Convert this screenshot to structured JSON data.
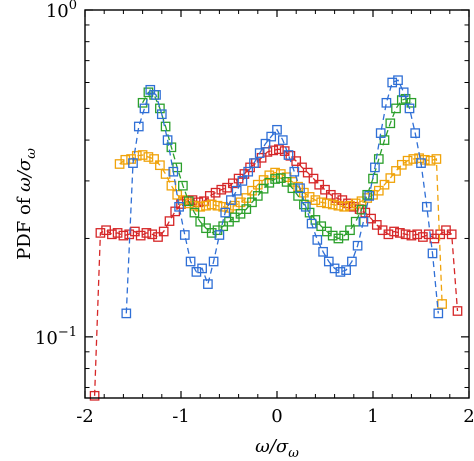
{
  "chart_data": {
    "type": "scatter",
    "xlabel": {
      "main": "ω/σ",
      "sub": "ω"
    },
    "ylabel": {
      "prefix": "PDF of ",
      "main": "ω/σ",
      "sub": "ω"
    },
    "xlim": [
      -2.0,
      2.0
    ],
    "ylim": [
      0.065,
      1.0
    ],
    "yscale": "log",
    "x_ticks": [
      {
        "value": -2,
        "label": "-2"
      },
      {
        "value": -1,
        "label": "-1"
      },
      {
        "value": 0,
        "label": "0"
      },
      {
        "value": 1,
        "label": "1"
      },
      {
        "value": 2,
        "label": "2"
      }
    ],
    "y_ticks": [
      {
        "value": 1.0,
        "base": "10",
        "exp": "0"
      },
      {
        "value": 0.1,
        "base": "10",
        "exp": "−1"
      }
    ],
    "grid": false,
    "series": [
      {
        "color": "#d62728",
        "x": [
          -1.9,
          -1.84,
          -1.78,
          -1.72,
          -1.66,
          -1.6,
          -1.54,
          -1.48,
          -1.42,
          -1.36,
          -1.3,
          -1.24,
          -1.18,
          -1.12,
          -1.06,
          -1.0,
          -0.94,
          -0.88,
          -0.82,
          -0.76,
          -0.7,
          -0.64,
          -0.58,
          -0.52,
          -0.46,
          -0.4,
          -0.34,
          -0.28,
          -0.22,
          -0.16,
          -0.1,
          -0.04,
          0.02,
          0.08,
          0.14,
          0.2,
          0.26,
          0.32,
          0.38,
          0.44,
          0.5,
          0.56,
          0.62,
          0.68,
          0.74,
          0.8,
          0.86,
          0.92,
          0.98,
          1.04,
          1.1,
          1.16,
          1.22,
          1.28,
          1.34,
          1.4,
          1.46,
          1.52,
          1.58,
          1.64,
          1.7,
          1.76,
          1.82,
          1.88
        ],
        "y": [
          0.066,
          0.208,
          0.212,
          0.206,
          0.208,
          0.204,
          0.206,
          0.21,
          0.204,
          0.208,
          0.206,
          0.202,
          0.21,
          0.226,
          0.242,
          0.255,
          0.26,
          0.262,
          0.258,
          0.26,
          0.27,
          0.276,
          0.282,
          0.286,
          0.295,
          0.305,
          0.315,
          0.33,
          0.34,
          0.353,
          0.368,
          0.372,
          0.375,
          0.37,
          0.358,
          0.345,
          0.33,
          0.318,
          0.305,
          0.292,
          0.282,
          0.272,
          0.266,
          0.262,
          0.256,
          0.25,
          0.246,
          0.24,
          0.23,
          0.22,
          0.212,
          0.206,
          0.21,
          0.208,
          0.206,
          0.204,
          0.206,
          0.202,
          0.206,
          0.2,
          0.206,
          0.212,
          0.206,
          0.12
        ]
      },
      {
        "color": "#f0a30a",
        "x": [
          -1.64,
          -1.58,
          -1.52,
          -1.46,
          -1.4,
          -1.34,
          -1.28,
          -1.22,
          -1.16,
          -1.1,
          -1.04,
          -0.98,
          -0.92,
          -0.86,
          -0.8,
          -0.74,
          -0.68,
          -0.62,
          -0.56,
          -0.5,
          -0.44,
          -0.38,
          -0.32,
          -0.26,
          -0.2,
          -0.14,
          -0.08,
          -0.02,
          0.04,
          0.1,
          0.16,
          0.22,
          0.28,
          0.34,
          0.4,
          0.46,
          0.52,
          0.58,
          0.64,
          0.7,
          0.76,
          0.82,
          0.88,
          0.94,
          1.0,
          1.06,
          1.12,
          1.18,
          1.24,
          1.3,
          1.36,
          1.42,
          1.48,
          1.54,
          1.6,
          1.66,
          1.72
        ],
        "y": [
          0.338,
          0.348,
          0.35,
          0.358,
          0.36,
          0.355,
          0.35,
          0.335,
          0.315,
          0.29,
          0.272,
          0.262,
          0.256,
          0.252,
          0.25,
          0.252,
          0.254,
          0.252,
          0.25,
          0.248,
          0.252,
          0.258,
          0.266,
          0.28,
          0.292,
          0.302,
          0.312,
          0.318,
          0.315,
          0.308,
          0.298,
          0.288,
          0.276,
          0.268,
          0.262,
          0.258,
          0.256,
          0.254,
          0.252,
          0.25,
          0.252,
          0.256,
          0.26,
          0.266,
          0.272,
          0.28,
          0.292,
          0.306,
          0.322,
          0.336,
          0.346,
          0.35,
          0.352,
          0.348,
          0.346,
          0.35,
          0.126
        ]
      },
      {
        "color": "#2ca02c",
        "x": [
          -1.4,
          -1.34,
          -1.28,
          -1.22,
          -1.16,
          -1.1,
          -1.04,
          -0.98,
          -0.92,
          -0.86,
          -0.8,
          -0.74,
          -0.68,
          -0.62,
          -0.56,
          -0.5,
          -0.44,
          -0.38,
          -0.32,
          -0.26,
          -0.2,
          -0.14,
          -0.08,
          -0.02,
          0.04,
          0.1,
          0.16,
          0.22,
          0.28,
          0.34,
          0.4,
          0.46,
          0.52,
          0.58,
          0.64,
          0.7,
          0.76,
          0.82,
          0.88,
          0.94,
          1.0,
          1.06,
          1.12,
          1.18,
          1.24,
          1.3,
          1.34,
          1.4
        ],
        "y": [
          0.52,
          0.56,
          0.55,
          0.5,
          0.44,
          0.38,
          0.33,
          0.29,
          0.26,
          0.24,
          0.225,
          0.215,
          0.208,
          0.212,
          0.218,
          0.225,
          0.232,
          0.238,
          0.246,
          0.258,
          0.27,
          0.284,
          0.296,
          0.304,
          0.306,
          0.298,
          0.285,
          0.27,
          0.254,
          0.24,
          0.228,
          0.218,
          0.21,
          0.204,
          0.2,
          0.204,
          0.212,
          0.225,
          0.245,
          0.272,
          0.305,
          0.35,
          0.4,
          0.45,
          0.5,
          0.53,
          0.535,
          0.52
        ]
      },
      {
        "color": "#2f6fd6",
        "x": [
          -1.57,
          -1.5,
          -1.44,
          -1.38,
          -1.32,
          -1.26,
          -1.2,
          -1.14,
          -1.08,
          -1.02,
          -0.96,
          -0.9,
          -0.84,
          -0.78,
          -0.72,
          -0.66,
          -0.6,
          -0.54,
          -0.48,
          -0.42,
          -0.36,
          -0.3,
          -0.24,
          -0.18,
          -0.12,
          -0.06,
          0.0,
          0.06,
          0.12,
          0.18,
          0.24,
          0.3,
          0.36,
          0.42,
          0.48,
          0.54,
          0.6,
          0.66,
          0.72,
          0.78,
          0.84,
          0.9,
          0.96,
          1.02,
          1.08,
          1.14,
          1.2,
          1.26,
          1.32,
          1.38,
          1.44,
          1.5,
          1.56,
          1.62,
          1.68
        ],
        "y": [
          0.118,
          0.34,
          0.44,
          0.5,
          0.57,
          0.55,
          0.48,
          0.4,
          0.32,
          0.25,
          0.205,
          0.17,
          0.158,
          0.162,
          0.145,
          0.17,
          0.205,
          0.24,
          0.262,
          0.28,
          0.3,
          0.32,
          0.34,
          0.365,
          0.39,
          0.41,
          0.43,
          0.4,
          0.36,
          0.32,
          0.285,
          0.25,
          0.222,
          0.198,
          0.182,
          0.17,
          0.162,
          0.158,
          0.16,
          0.17,
          0.19,
          0.225,
          0.27,
          0.33,
          0.42,
          0.52,
          0.6,
          0.61,
          0.56,
          0.5,
          0.42,
          0.34,
          0.25,
          0.18,
          0.118
        ]
      }
    ]
  }
}
